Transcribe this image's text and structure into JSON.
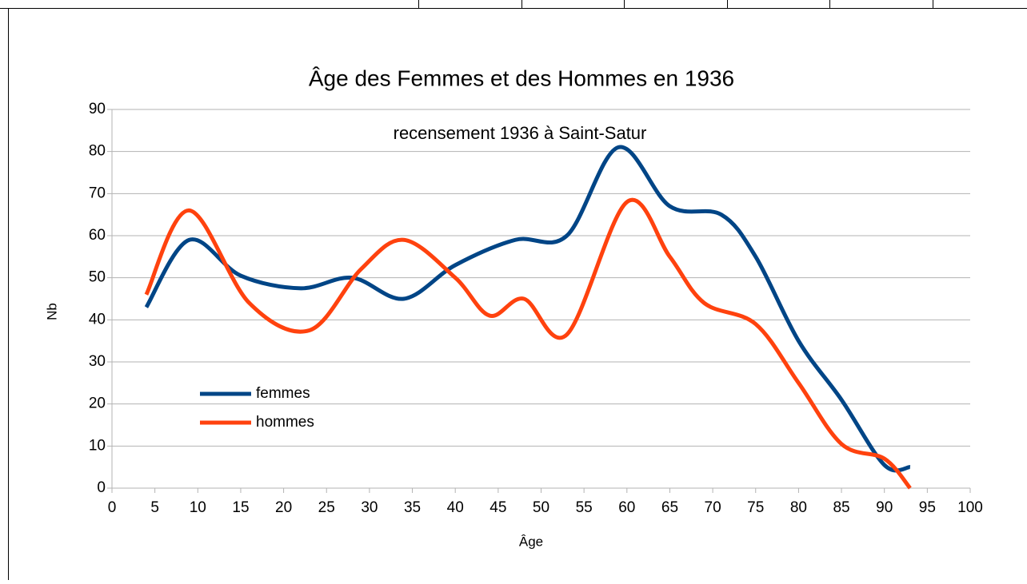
{
  "chart_data": {
    "type": "line",
    "title": "Âge des Femmes et des Hommes en 1936",
    "subtitle": "recensement 1936 à Saint-Satur",
    "x_label": "Âge",
    "y_label": "Nb",
    "xlim": [
      0,
      100
    ],
    "xticks": [
      0,
      5,
      10,
      15,
      20,
      25,
      30,
      35,
      40,
      45,
      50,
      55,
      60,
      65,
      70,
      75,
      80,
      85,
      90,
      95,
      100
    ],
    "ylim": [
      0,
      90
    ],
    "yticks": [
      0,
      10,
      20,
      30,
      40,
      50,
      60,
      70,
      80,
      90
    ],
    "grid": true,
    "legend": "lower left",
    "series": [
      {
        "name": "femmes",
        "color": "#004586",
        "x": [
          4,
          9,
          15,
          22,
          28,
          34,
          40,
          47,
          53,
          59,
          65,
          71,
          75,
          80,
          85,
          90,
          93
        ],
        "values": [
          43,
          59,
          50.5,
          47.5,
          50,
          45,
          53,
          59,
          60,
          81,
          67,
          65,
          55,
          35,
          21,
          5.5,
          5
        ]
      },
      {
        "name": "hommes",
        "color": "#ff420e",
        "x": [
          4,
          9,
          16,
          23,
          29,
          34,
          40,
          44,
          48,
          53,
          60,
          65,
          69,
          75,
          80,
          85,
          90,
          93
        ],
        "values": [
          46,
          66,
          44,
          37.5,
          52,
          59,
          50,
          41,
          45,
          36.5,
          68,
          55,
          44,
          39,
          25,
          10.5,
          7,
          0
        ]
      }
    ]
  }
}
